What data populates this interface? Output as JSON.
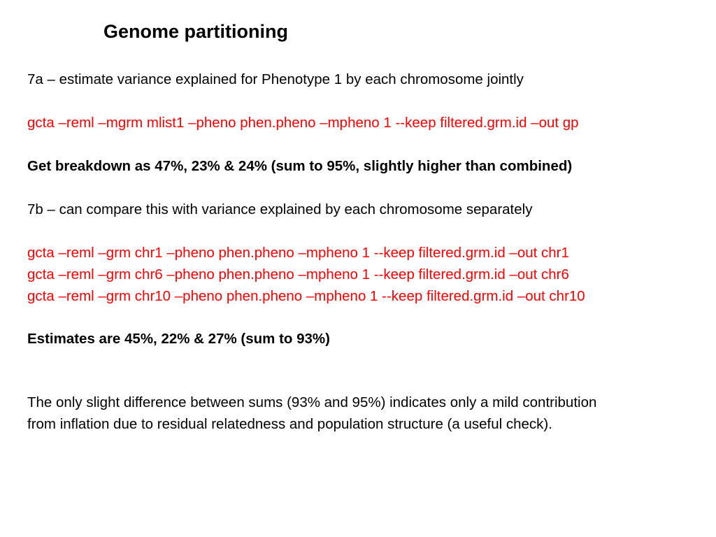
{
  "slide": {
    "title": "Genome partitioning",
    "section_7a": {
      "heading": "7a – estimate variance explained for Phenotype 1 by each chromosome jointly",
      "command": "gcta –reml –mgrm mlist1 –pheno phen.pheno –mpheno 1 --keep filtered.grm.id –out gp",
      "result": "Get breakdown as 47%, 23% & 24% (sum to 95%, slightly higher than combined)"
    },
    "section_7b": {
      "heading": "7b – can compare this with variance explained by each chromosome separately",
      "commands": [
        "gcta –reml –grm chr1 –pheno phen.pheno –mpheno 1 --keep filtered.grm.id –out chr1",
        "gcta –reml –grm chr6 –pheno phen.pheno –mpheno 1 --keep filtered.grm.id –out chr6",
        "gcta –reml –grm chr10 –pheno phen.pheno –mpheno 1 --keep filtered.grm.id –out chr10"
      ],
      "result": "Estimates are  45%, 22% & 27% (sum to 93%)"
    },
    "conclusion": [
      "The only slight difference between sums (93% and 95%) indicates only a mild contribution",
      "from inflation due to residual relatedness and population structure (a useful check)."
    ]
  },
  "colors": {
    "command_text": "#ff0000",
    "body_text": "#000000",
    "background": "#ffffff"
  }
}
